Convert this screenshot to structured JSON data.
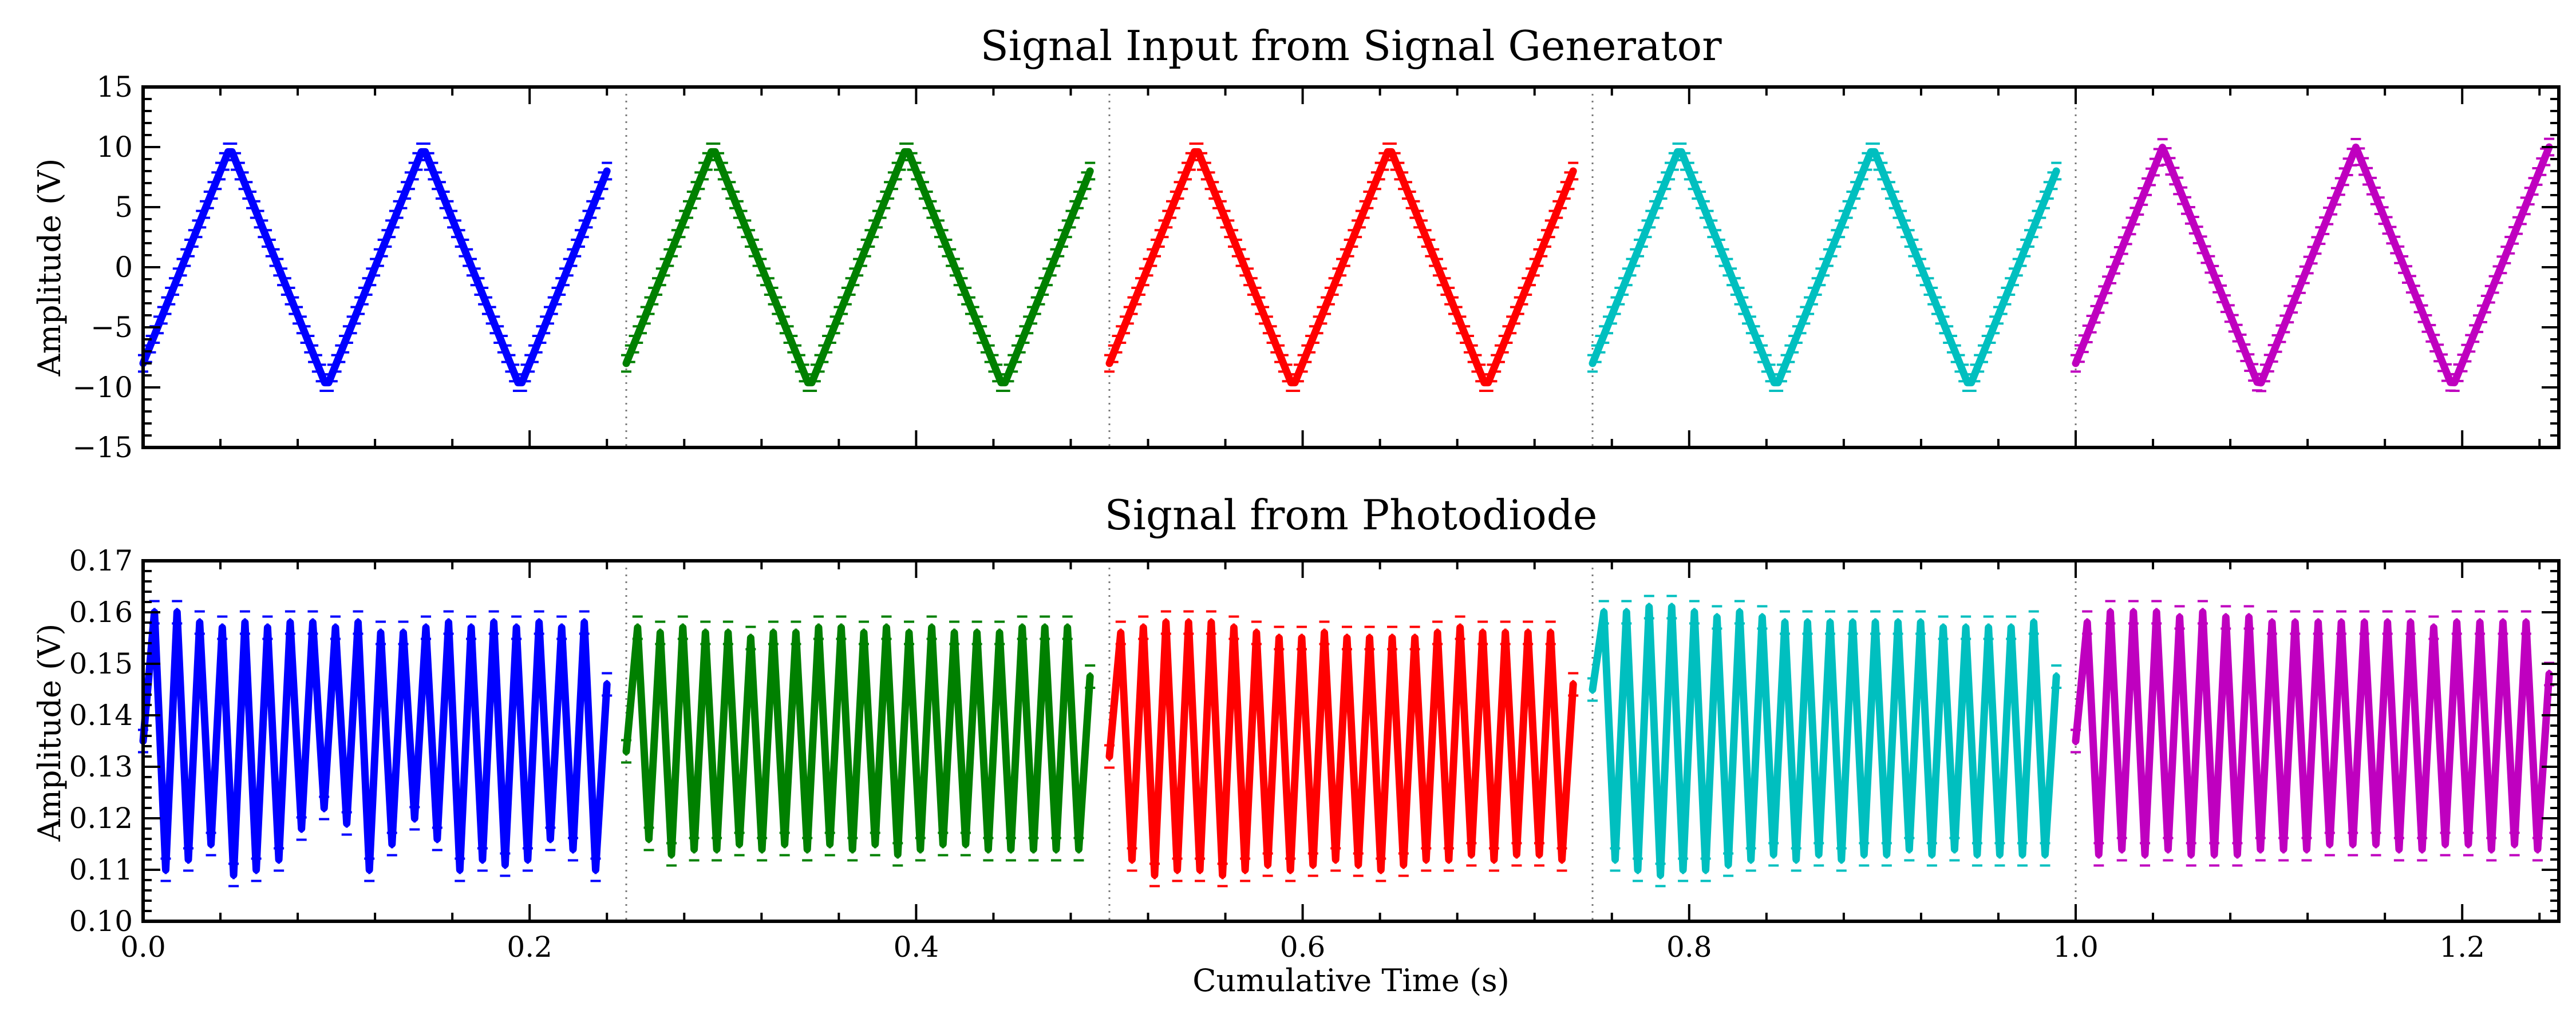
{
  "chart_data": [
    {
      "type": "line",
      "title": "Signal Input from Signal Generator",
      "xlabel": "",
      "ylabel": "Amplitude (V)",
      "xlim": [
        0.0,
        1.25
      ],
      "ylim": [
        -15,
        15
      ],
      "yticks": [
        -15,
        -10,
        -5,
        0,
        5,
        10,
        15
      ],
      "ytick_labels": [
        "−15",
        "−10",
        "−5",
        "0",
        "5",
        "10",
        "15"
      ],
      "xtick_labels_visible": false,
      "grid": false,
      "segment_boundaries": [
        0.25,
        0.5,
        0.75,
        1.0
      ],
      "waveform": "triangle",
      "amplitude": 10,
      "period": 0.1,
      "error_bar": 0.4,
      "series": [
        {
          "color": "#0000ff",
          "x_start": 0.0,
          "x_end": 0.24,
          "y_start": -8
        },
        {
          "color": "#008000",
          "x_start": 0.25,
          "x_end": 0.49,
          "y_start": -8
        },
        {
          "color": "#ff0000",
          "x_start": 0.5,
          "x_end": 0.74,
          "y_start": -8
        },
        {
          "color": "#00bfbf",
          "x_start": 0.75,
          "x_end": 0.99,
          "y_start": -8
        },
        {
          "color": "#bf00bf",
          "x_start": 1.0,
          "x_end": 1.245,
          "y_start": -8
        }
      ]
    },
    {
      "type": "line",
      "title": "Signal from Photodiode",
      "xlabel": "Cumulative Time (s)",
      "ylabel": "Amplitude (V)",
      "xlim": [
        0.0,
        1.25
      ],
      "ylim": [
        0.1,
        0.17
      ],
      "xticks": [
        0.0,
        0.2,
        0.4,
        0.6,
        0.8,
        1.0,
        1.2
      ],
      "xtick_labels": [
        "0.0",
        "0.2",
        "0.4",
        "0.6",
        "0.8",
        "1.0",
        "1.2"
      ],
      "yticks": [
        0.1,
        0.11,
        0.12,
        0.13,
        0.14,
        0.15,
        0.16,
        0.17
      ],
      "ytick_labels": [
        "0.10",
        "0.11",
        "0.12",
        "0.13",
        "0.14",
        "0.15",
        "0.16",
        "0.17"
      ],
      "grid": false,
      "segment_boundaries": [
        0.25,
        0.5,
        0.75,
        1.0
      ],
      "error_bar": 0.0015,
      "series": [
        {
          "color": "#0000ff",
          "x_start": 0.0,
          "x_end": 0.24,
          "y_start": 0.135,
          "peaks": [
            0.16,
            0.16,
            0.158,
            0.157,
            0.158,
            0.157,
            0.158,
            0.158,
            0.157,
            0.158,
            0.156,
            0.156,
            0.157,
            0.158,
            0.157,
            0.158,
            0.157,
            0.158,
            0.157,
            0.158
          ],
          "troughs": [
            0.11,
            0.112,
            0.115,
            0.109,
            0.11,
            0.112,
            0.118,
            0.122,
            0.119,
            0.11,
            0.115,
            0.12,
            0.116,
            0.11,
            0.112,
            0.111,
            0.112,
            0.116,
            0.114,
            0.11
          ]
        },
        {
          "color": "#008000",
          "x_start": 0.25,
          "x_end": 0.49,
          "y_start": 0.133,
          "peaks": [
            0.157,
            0.156,
            0.157,
            0.156,
            0.156,
            0.155,
            0.156,
            0.156,
            0.157,
            0.157,
            0.156,
            0.157,
            0.156,
            0.157,
            0.156,
            0.156,
            0.156,
            0.157,
            0.157,
            0.157
          ],
          "troughs": [
            0.116,
            0.113,
            0.114,
            0.114,
            0.115,
            0.114,
            0.115,
            0.114,
            0.115,
            0.114,
            0.115,
            0.113,
            0.114,
            0.115,
            0.115,
            0.114,
            0.114,
            0.114,
            0.114,
            0.114
          ]
        },
        {
          "color": "#ff0000",
          "x_start": 0.5,
          "x_end": 0.74,
          "y_start": 0.132,
          "peaks": [
            0.156,
            0.157,
            0.158,
            0.158,
            0.158,
            0.157,
            0.156,
            0.155,
            0.155,
            0.156,
            0.155,
            0.155,
            0.155,
            0.155,
            0.156,
            0.157,
            0.156,
            0.156,
            0.156,
            0.156
          ],
          "troughs": [
            0.112,
            0.109,
            0.11,
            0.11,
            0.109,
            0.11,
            0.111,
            0.11,
            0.111,
            0.112,
            0.111,
            0.11,
            0.111,
            0.112,
            0.112,
            0.113,
            0.112,
            0.113,
            0.113,
            0.112
          ]
        },
        {
          "color": "#00bfbf",
          "x_start": 0.75,
          "x_end": 0.99,
          "y_start": 0.145,
          "peaks": [
            0.16,
            0.16,
            0.161,
            0.161,
            0.16,
            0.159,
            0.16,
            0.159,
            0.158,
            0.158,
            0.158,
            0.158,
            0.158,
            0.158,
            0.158,
            0.157,
            0.157,
            0.157,
            0.157,
            0.158
          ],
          "troughs": [
            0.112,
            0.11,
            0.109,
            0.11,
            0.11,
            0.111,
            0.112,
            0.113,
            0.112,
            0.113,
            0.112,
            0.113,
            0.113,
            0.114,
            0.113,
            0.114,
            0.113,
            0.113,
            0.113,
            0.113
          ]
        },
        {
          "color": "#bf00bf",
          "x_start": 1.0,
          "x_end": 1.245,
          "y_start": 0.135,
          "peaks": [
            0.158,
            0.16,
            0.16,
            0.16,
            0.159,
            0.16,
            0.159,
            0.159,
            0.158,
            0.158,
            0.158,
            0.158,
            0.158,
            0.158,
            0.158,
            0.157,
            0.158,
            0.158,
            0.158,
            0.158
          ],
          "troughs": [
            0.113,
            0.114,
            0.113,
            0.114,
            0.113,
            0.113,
            0.113,
            0.114,
            0.114,
            0.114,
            0.115,
            0.115,
            0.115,
            0.114,
            0.114,
            0.115,
            0.115,
            0.114,
            0.115,
            0.114
          ]
        }
      ]
    }
  ]
}
